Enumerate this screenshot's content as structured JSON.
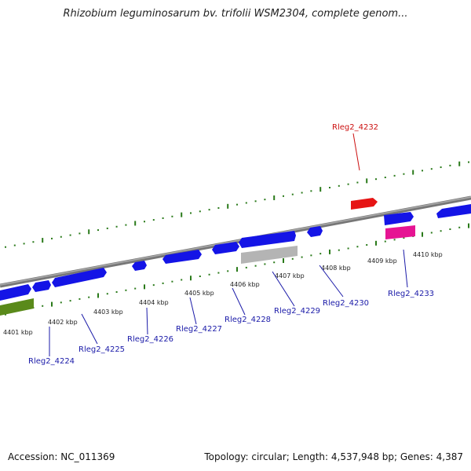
{
  "title": "Rhizobium leguminosarum bv. trifolii WSM2304, complete genom...",
  "footer": {
    "accession": "Accession: NC_011369",
    "summary": "Topology: circular; Length: 4,537,948 bp; Genes: 4,387"
  },
  "colors": {
    "tick": "#2a7a1a",
    "gene_forward": "#1414e6",
    "gene_highlight": "#e61414",
    "gene_pink": "#e61493",
    "gene_gray": "#b4b4b4",
    "gene_green": "#5a8a1a",
    "backbone": "#888888",
    "label_blue": "#1a1aa8",
    "label_red": "#cc1111"
  },
  "ruler": {
    "tick_labels": [
      "4401 kbp",
      "4402 kbp",
      "4403 kbp",
      "4404 kbp",
      "4405 kbp",
      "4406 kbp",
      "4407 kbp",
      "4408 kbp",
      "4409 kbp",
      "4410 kbp"
    ]
  },
  "gene_labels": [
    {
      "id": "g4224",
      "text": "Rleg2_4224",
      "color": "blue"
    },
    {
      "id": "g4225",
      "text": "Rleg2_4225",
      "color": "blue"
    },
    {
      "id": "g4226",
      "text": "Rleg2_4226",
      "color": "blue"
    },
    {
      "id": "g4227",
      "text": "Rleg2_4227",
      "color": "blue"
    },
    {
      "id": "g4228",
      "text": "Rleg2_4228",
      "color": "blue"
    },
    {
      "id": "g4229",
      "text": "Rleg2_4229",
      "color": "blue"
    },
    {
      "id": "g4230",
      "text": "Rleg2_4230",
      "color": "blue"
    },
    {
      "id": "g4233",
      "text": "Rleg2_4233",
      "color": "blue"
    },
    {
      "id": "g4232",
      "text": "Rleg2_4232",
      "color": "red"
    }
  ]
}
